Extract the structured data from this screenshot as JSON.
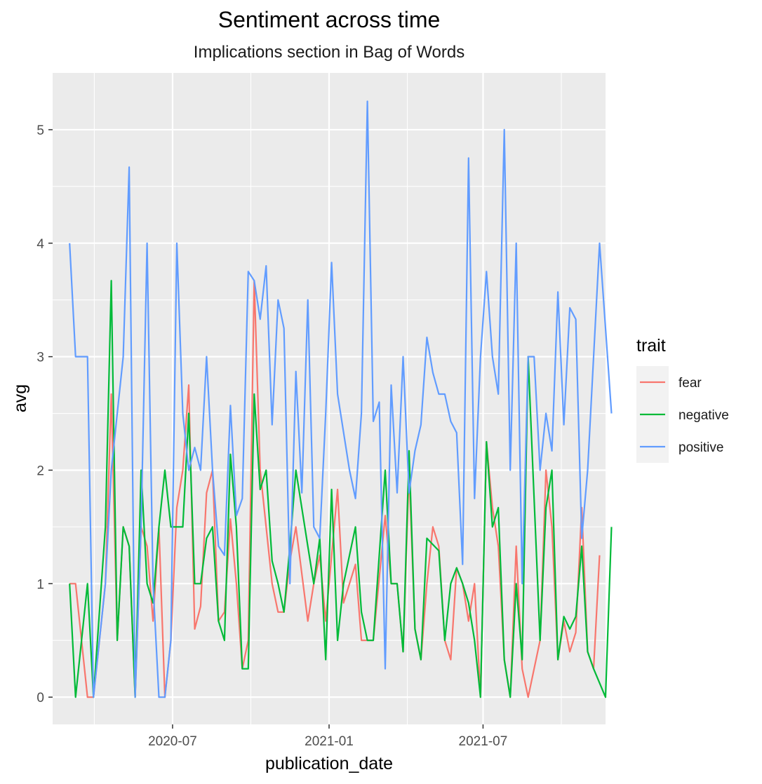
{
  "chart_data": {
    "type": "line",
    "title": "Sentiment across time",
    "subtitle": "Implications section in Bag of Words",
    "xlabel": "publication_date",
    "ylabel": "avg",
    "x_axis_type": "date",
    "xlim": [
      "2020-02-11",
      "2021-11-22"
    ],
    "x_ticks": [
      {
        "value": "2020-07-01",
        "label": "2020-07"
      },
      {
        "value": "2021-01-01",
        "label": "2021-01"
      },
      {
        "value": "2021-07-01",
        "label": "2021-07"
      }
    ],
    "ylim": [
      -0.24,
      5.5
    ],
    "y_ticks": [
      0,
      1,
      2,
      3,
      4,
      5
    ],
    "grid": true,
    "legend": {
      "title": "trait",
      "position": "right"
    },
    "series": [
      {
        "name": "fear",
        "color": "#F8766D",
        "points": [
          [
            "2020-03-02",
            1.0
          ],
          [
            "2020-03-09",
            1.0
          ],
          [
            "2020-03-23",
            0.0
          ],
          [
            "2020-03-30",
            0.0
          ],
          [
            "2020-04-13",
            1.0
          ],
          [
            "2020-04-20",
            2.67
          ],
          [
            "2020-04-27",
            0.5
          ],
          [
            "2020-05-04",
            1.5
          ],
          [
            "2020-05-11",
            1.33
          ],
          [
            "2020-05-18",
            0.0
          ],
          [
            "2020-05-25",
            1.5
          ],
          [
            "2020-06-01",
            1.33
          ],
          [
            "2020-06-08",
            0.67
          ],
          [
            "2020-06-15",
            1.5
          ],
          [
            "2020-06-22",
            0.0
          ],
          [
            "2020-06-29",
            0.5
          ],
          [
            "2020-07-06",
            1.67
          ],
          [
            "2020-07-13",
            2.0
          ],
          [
            "2020-07-20",
            2.75
          ],
          [
            "2020-07-27",
            0.6
          ],
          [
            "2020-08-03",
            0.8
          ],
          [
            "2020-08-10",
            1.8
          ],
          [
            "2020-08-17",
            2.0
          ],
          [
            "2020-08-24",
            0.67
          ],
          [
            "2020-08-31",
            0.75
          ],
          [
            "2020-09-07",
            1.57
          ],
          [
            "2020-09-14",
            1.0
          ],
          [
            "2020-09-21",
            0.25
          ],
          [
            "2020-09-28",
            0.5
          ],
          [
            "2020-10-05",
            3.67
          ],
          [
            "2020-10-12",
            2.0
          ],
          [
            "2020-10-19",
            1.5
          ],
          [
            "2020-10-26",
            1.0
          ],
          [
            "2020-11-02",
            0.75
          ],
          [
            "2020-11-09",
            0.75
          ],
          [
            "2020-11-16",
            1.2
          ],
          [
            "2020-11-23",
            1.5
          ],
          [
            "2020-12-07",
            0.67
          ],
          [
            "2020-12-14",
            1.0
          ],
          [
            "2020-12-21",
            1.25
          ],
          [
            "2020-12-28",
            0.67
          ],
          [
            "2021-01-11",
            1.83
          ],
          [
            "2021-01-18",
            0.83
          ],
          [
            "2021-01-25",
            1.0
          ],
          [
            "2021-02-01",
            1.17
          ],
          [
            "2021-02-08",
            0.5
          ],
          [
            "2021-02-22",
            0.5
          ],
          [
            "2021-03-08",
            1.6
          ],
          [
            "2021-03-15",
            1.0
          ],
          [
            "2021-03-22",
            1.0
          ],
          [
            "2021-03-29",
            0.4
          ],
          [
            "2021-04-05",
            2.0
          ],
          [
            "2021-04-12",
            0.6
          ],
          [
            "2021-04-19",
            0.33
          ],
          [
            "2021-04-26",
            1.0
          ],
          [
            "2021-05-03",
            1.5
          ],
          [
            "2021-05-10",
            1.33
          ],
          [
            "2021-05-17",
            0.5
          ],
          [
            "2021-05-24",
            0.33
          ],
          [
            "2021-05-31",
            1.14
          ],
          [
            "2021-06-07",
            1.0
          ],
          [
            "2021-06-14",
            0.67
          ],
          [
            "2021-06-21",
            1.0
          ],
          [
            "2021-06-28",
            0.0
          ],
          [
            "2021-07-05",
            2.25
          ],
          [
            "2021-07-12",
            1.67
          ],
          [
            "2021-07-19",
            1.33
          ],
          [
            "2021-07-26",
            0.33
          ],
          [
            "2021-08-02",
            0.0
          ],
          [
            "2021-08-09",
            1.33
          ],
          [
            "2021-08-16",
            0.25
          ],
          [
            "2021-08-23",
            0.0
          ],
          [
            "2021-09-06",
            0.5
          ],
          [
            "2021-09-13",
            2.0
          ],
          [
            "2021-09-20",
            1.5
          ],
          [
            "2021-09-27",
            0.33
          ],
          [
            "2021-10-04",
            0.67
          ],
          [
            "2021-10-11",
            0.4
          ],
          [
            "2021-10-18",
            0.57
          ],
          [
            "2021-10-25",
            1.67
          ],
          [
            "2021-11-01",
            0.4
          ],
          [
            "2021-11-08",
            0.25
          ],
          [
            "2021-11-15",
            1.25
          ]
        ]
      },
      {
        "name": "negative",
        "color": "#00BA38",
        "points": [
          [
            "2020-03-02",
            1.0
          ],
          [
            "2020-03-09",
            0.0
          ],
          [
            "2020-03-23",
            1.0
          ],
          [
            "2020-03-30",
            0.0
          ],
          [
            "2020-04-13",
            1.5
          ],
          [
            "2020-04-20",
            3.67
          ],
          [
            "2020-04-27",
            0.5
          ],
          [
            "2020-05-04",
            1.5
          ],
          [
            "2020-05-11",
            1.33
          ],
          [
            "2020-05-18",
            0.0
          ],
          [
            "2020-05-25",
            2.0
          ],
          [
            "2020-06-01",
            1.0
          ],
          [
            "2020-06-08",
            0.83
          ],
          [
            "2020-06-15",
            1.5
          ],
          [
            "2020-06-22",
            2.0
          ],
          [
            "2020-06-29",
            1.5
          ],
          [
            "2020-07-06",
            1.5
          ],
          [
            "2020-07-13",
            1.5
          ],
          [
            "2020-07-20",
            2.5
          ],
          [
            "2020-07-27",
            1.0
          ],
          [
            "2020-08-03",
            1.0
          ],
          [
            "2020-08-10",
            1.4
          ],
          [
            "2020-08-17",
            1.5
          ],
          [
            "2020-08-24",
            0.67
          ],
          [
            "2020-08-31",
            0.5
          ],
          [
            "2020-09-07",
            2.14
          ],
          [
            "2020-09-14",
            1.5
          ],
          [
            "2020-09-21",
            0.25
          ],
          [
            "2020-09-28",
            0.25
          ],
          [
            "2020-10-05",
            2.67
          ],
          [
            "2020-10-12",
            1.83
          ],
          [
            "2020-10-19",
            2.0
          ],
          [
            "2020-10-26",
            1.2
          ],
          [
            "2020-11-02",
            1.0
          ],
          [
            "2020-11-09",
            0.75
          ],
          [
            "2020-11-16",
            1.33
          ],
          [
            "2020-11-23",
            2.0
          ],
          [
            "2020-12-07",
            1.33
          ],
          [
            "2020-12-14",
            1.0
          ],
          [
            "2020-12-21",
            1.4
          ],
          [
            "2020-12-28",
            0.33
          ],
          [
            "2021-01-04",
            1.83
          ],
          [
            "2021-01-11",
            0.5
          ],
          [
            "2021-01-18",
            1.0
          ],
          [
            "2021-02-01",
            1.5
          ],
          [
            "2021-02-08",
            0.75
          ],
          [
            "2021-02-15",
            0.5
          ],
          [
            "2021-02-22",
            0.5
          ],
          [
            "2021-03-08",
            2.0
          ],
          [
            "2021-03-15",
            1.0
          ],
          [
            "2021-03-22",
            1.0
          ],
          [
            "2021-03-29",
            0.4
          ],
          [
            "2021-04-05",
            2.17
          ],
          [
            "2021-04-12",
            0.6
          ],
          [
            "2021-04-19",
            0.33
          ],
          [
            "2021-04-26",
            1.4
          ],
          [
            "2021-05-10",
            1.29
          ],
          [
            "2021-05-17",
            0.5
          ],
          [
            "2021-05-24",
            1.0
          ],
          [
            "2021-05-31",
            1.14
          ],
          [
            "2021-06-07",
            1.0
          ],
          [
            "2021-06-14",
            0.83
          ],
          [
            "2021-06-21",
            0.5
          ],
          [
            "2021-06-28",
            0.0
          ],
          [
            "2021-07-05",
            2.25
          ],
          [
            "2021-07-12",
            1.5
          ],
          [
            "2021-07-19",
            1.67
          ],
          [
            "2021-07-26",
            0.33
          ],
          [
            "2021-08-02",
            0.0
          ],
          [
            "2021-08-09",
            1.0
          ],
          [
            "2021-08-16",
            0.33
          ],
          [
            "2021-08-23",
            3.0
          ],
          [
            "2021-09-06",
            0.5
          ],
          [
            "2021-09-13",
            1.67
          ],
          [
            "2021-09-20",
            2.0
          ],
          [
            "2021-09-27",
            0.33
          ],
          [
            "2021-10-04",
            0.71
          ],
          [
            "2021-10-11",
            0.6
          ],
          [
            "2021-10-18",
            0.71
          ],
          [
            "2021-10-25",
            1.33
          ],
          [
            "2021-11-01",
            0.4
          ],
          [
            "2021-11-08",
            0.25
          ],
          [
            "2021-11-22",
            0.0
          ],
          [
            "2021-11-29",
            1.5
          ]
        ]
      },
      {
        "name": "positive",
        "color": "#619CFF",
        "points": [
          [
            "2020-03-02",
            4.0
          ],
          [
            "2020-03-09",
            3.0
          ],
          [
            "2020-03-16",
            3.0
          ],
          [
            "2020-03-23",
            3.0
          ],
          [
            "2020-03-30",
            0.0
          ],
          [
            "2020-04-13",
            1.0
          ],
          [
            "2020-04-20",
            2.0
          ],
          [
            "2020-04-27",
            2.5
          ],
          [
            "2020-05-04",
            3.0
          ],
          [
            "2020-05-11",
            4.67
          ],
          [
            "2020-05-18",
            0.0
          ],
          [
            "2020-05-25",
            1.5
          ],
          [
            "2020-06-01",
            4.0
          ],
          [
            "2020-06-08",
            1.0
          ],
          [
            "2020-06-15",
            0.0
          ],
          [
            "2020-06-22",
            0.0
          ],
          [
            "2020-06-29",
            0.5
          ],
          [
            "2020-07-06",
            4.0
          ],
          [
            "2020-07-13",
            2.5
          ],
          [
            "2020-07-20",
            2.0
          ],
          [
            "2020-07-27",
            2.2
          ],
          [
            "2020-08-03",
            2.0
          ],
          [
            "2020-08-10",
            3.0
          ],
          [
            "2020-08-17",
            2.0
          ],
          [
            "2020-08-24",
            1.33
          ],
          [
            "2020-08-31",
            1.25
          ],
          [
            "2020-09-07",
            2.57
          ],
          [
            "2020-09-14",
            1.6
          ],
          [
            "2020-09-21",
            1.75
          ],
          [
            "2020-09-28",
            3.75
          ],
          [
            "2020-10-05",
            3.67
          ],
          [
            "2020-10-12",
            3.33
          ],
          [
            "2020-10-19",
            3.8
          ],
          [
            "2020-10-26",
            2.4
          ],
          [
            "2020-11-02",
            3.5
          ],
          [
            "2020-11-09",
            3.25
          ],
          [
            "2020-11-16",
            1.0
          ],
          [
            "2020-11-23",
            2.87
          ],
          [
            "2020-11-30",
            1.8
          ],
          [
            "2020-12-07",
            3.5
          ],
          [
            "2020-12-14",
            1.5
          ],
          [
            "2020-12-21",
            1.4
          ],
          [
            "2020-12-28",
            2.5
          ],
          [
            "2021-01-04",
            3.83
          ],
          [
            "2021-01-11",
            2.67
          ],
          [
            "2021-01-25",
            2.0
          ],
          [
            "2021-02-01",
            1.75
          ],
          [
            "2021-02-08",
            2.5
          ],
          [
            "2021-02-15",
            5.25
          ],
          [
            "2021-02-22",
            2.43
          ],
          [
            "2021-03-01",
            2.6
          ],
          [
            "2021-03-08",
            0.25
          ],
          [
            "2021-03-15",
            2.75
          ],
          [
            "2021-03-22",
            1.8
          ],
          [
            "2021-03-29",
            3.0
          ],
          [
            "2021-04-05",
            1.8
          ],
          [
            "2021-04-12",
            2.17
          ],
          [
            "2021-04-19",
            2.4
          ],
          [
            "2021-04-26",
            3.17
          ],
          [
            "2021-05-03",
            2.86
          ],
          [
            "2021-05-10",
            2.67
          ],
          [
            "2021-05-17",
            2.67
          ],
          [
            "2021-05-24",
            2.43
          ],
          [
            "2021-05-31",
            2.33
          ],
          [
            "2021-06-07",
            1.17
          ],
          [
            "2021-06-14",
            4.75
          ],
          [
            "2021-06-21",
            1.75
          ],
          [
            "2021-06-28",
            3.0
          ],
          [
            "2021-07-05",
            3.75
          ],
          [
            "2021-07-12",
            3.0
          ],
          [
            "2021-07-19",
            2.67
          ],
          [
            "2021-07-26",
            5.0
          ],
          [
            "2021-08-02",
            2.0
          ],
          [
            "2021-08-09",
            4.0
          ],
          [
            "2021-08-16",
            1.0
          ],
          [
            "2021-08-23",
            3.0
          ],
          [
            "2021-08-30",
            3.0
          ],
          [
            "2021-09-06",
            2.0
          ],
          [
            "2021-09-13",
            2.5
          ],
          [
            "2021-09-20",
            2.17
          ],
          [
            "2021-09-27",
            3.57
          ],
          [
            "2021-10-04",
            2.4
          ],
          [
            "2021-10-11",
            3.43
          ],
          [
            "2021-10-18",
            3.33
          ],
          [
            "2021-10-25",
            1.4
          ],
          [
            "2021-11-01",
            2.0
          ],
          [
            "2021-11-15",
            4.0
          ],
          [
            "2021-11-29",
            2.5
          ]
        ]
      }
    ]
  }
}
